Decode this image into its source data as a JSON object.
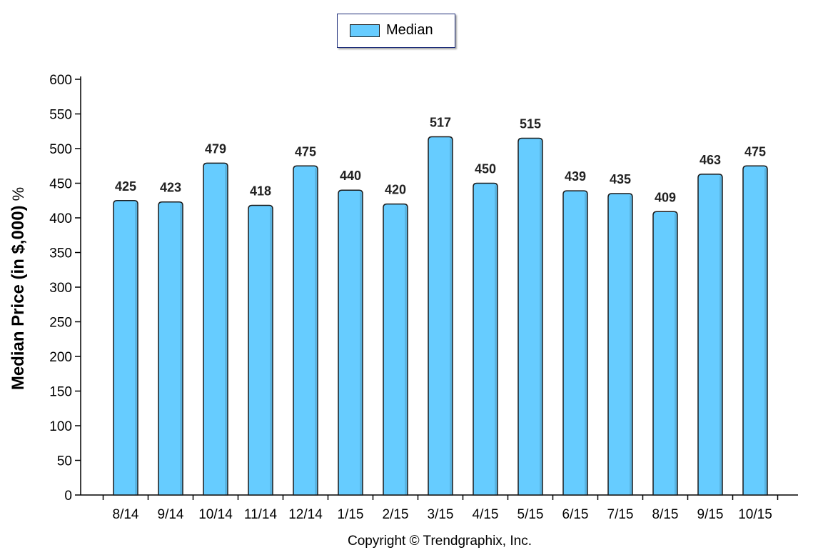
{
  "legend": {
    "label": "Median",
    "color": "#66ccff"
  },
  "copyright": "Copyright © Trendgraphix, Inc.",
  "chart_data": {
    "type": "bar",
    "categories": [
      "8/14",
      "9/14",
      "10/14",
      "11/14",
      "12/14",
      "1/15",
      "2/15",
      "3/15",
      "4/15",
      "5/15",
      "6/15",
      "7/15",
      "8/15",
      "9/15",
      "10/15"
    ],
    "series": [
      {
        "name": "Median",
        "values": [
          425,
          423,
          479,
          418,
          475,
          440,
          420,
          517,
          450,
          515,
          439,
          435,
          409,
          463,
          475
        ],
        "color": "#66ccff"
      }
    ],
    "title": "",
    "xlabel": "",
    "ylabel": "Median Price (in $,000)",
    "ylabel_unit": "%",
    "ylim": [
      0,
      600
    ],
    "yticks": [
      0,
      50,
      100,
      150,
      200,
      250,
      300,
      350,
      400,
      450,
      500,
      550,
      600
    ],
    "grid": false,
    "legend_position": "top-center"
  }
}
